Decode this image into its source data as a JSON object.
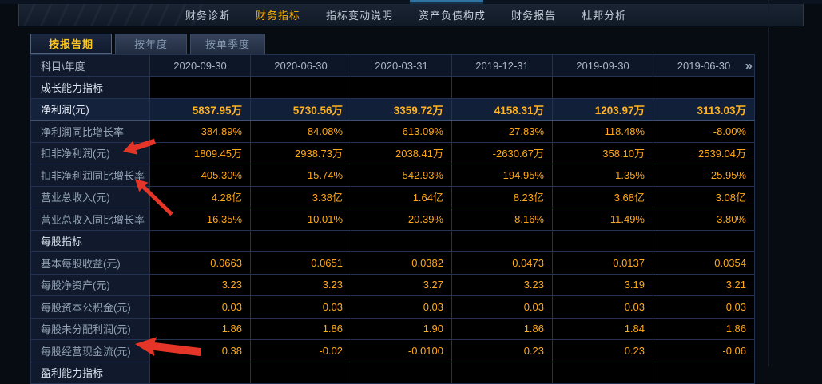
{
  "colors": {
    "accent_yellow": "#ffa81a",
    "accent_yellow_bold": "#ffb322",
    "active_tab_yellow": "#ffc91e",
    "nav_active_yellow": "#ffb400",
    "annotation_red": "#e53528",
    "table_border": "#233251",
    "highlight_row_bg": "#121f38"
  },
  "top_nav": {
    "items": [
      {
        "id": "financial-diagnosis",
        "label": "财务诊断",
        "active": false
      },
      {
        "id": "financial-indicators",
        "label": "财务指标",
        "active": true
      },
      {
        "id": "indicator-change-notes",
        "label": "指标变动说明",
        "active": false
      },
      {
        "id": "balance-sheet-structure",
        "label": "资产负债构成",
        "active": false
      },
      {
        "id": "financial-report",
        "label": "财务报告",
        "active": false
      },
      {
        "id": "dupont-analysis",
        "label": "杜邦分析",
        "active": false
      }
    ]
  },
  "tabs": [
    {
      "id": "by-report-period",
      "label": "按报告期",
      "active": true
    },
    {
      "id": "by-year",
      "label": "按年度",
      "active": false
    },
    {
      "id": "by-quarter",
      "label": "按单季度",
      "active": false
    }
  ],
  "table": {
    "corner_header": "科目\\年度",
    "columns": [
      "2020-09-30",
      "2020-06-30",
      "2020-03-31",
      "2019-12-31",
      "2019-09-30",
      "2019-06-30"
    ],
    "more_columns_icon": "»",
    "rows": [
      {
        "type": "section",
        "label": "成长能力指标",
        "values": [
          "",
          "",
          "",
          "",
          "",
          ""
        ]
      },
      {
        "type": "data",
        "label": "净利润(元)",
        "highlight": true,
        "values": [
          "5837.95万",
          "5730.56万",
          "3359.72万",
          "4158.31万",
          "1203.97万",
          "3113.03万"
        ]
      },
      {
        "type": "data",
        "label": "净利润同比增长率",
        "values": [
          "384.89%",
          "84.08%",
          "613.09%",
          "27.83%",
          "118.48%",
          "-8.00%"
        ]
      },
      {
        "type": "data",
        "label": "扣非净利润(元)",
        "values": [
          "1809.45万",
          "2938.73万",
          "2038.41万",
          "-2630.67万",
          "358.10万",
          "2539.04万"
        ]
      },
      {
        "type": "data",
        "label": "扣非净利润同比增长率",
        "values": [
          "405.30%",
          "15.74%",
          "542.93%",
          "-194.95%",
          "1.35%",
          "-25.95%"
        ]
      },
      {
        "type": "data",
        "label": "营业总收入(元)",
        "values": [
          "4.28亿",
          "3.38亿",
          "1.64亿",
          "8.23亿",
          "3.68亿",
          "3.08亿"
        ]
      },
      {
        "type": "data",
        "label": "营业总收入同比增长率",
        "values": [
          "16.35%",
          "10.01%",
          "20.39%",
          "8.16%",
          "11.49%",
          "3.80%"
        ]
      },
      {
        "type": "section",
        "label": "每股指标",
        "values": [
          "",
          "",
          "",
          "",
          "",
          ""
        ]
      },
      {
        "type": "data",
        "label": "基本每股收益(元)",
        "values": [
          "0.0663",
          "0.0651",
          "0.0382",
          "0.0473",
          "0.0137",
          "0.0354"
        ]
      },
      {
        "type": "data",
        "label": "每股净资产(元)",
        "values": [
          "3.23",
          "3.23",
          "3.27",
          "3.23",
          "3.19",
          "3.21"
        ]
      },
      {
        "type": "data",
        "label": "每股资本公积金(元)",
        "values": [
          "0.03",
          "0.03",
          "0.03",
          "0.03",
          "0.03",
          "0.03"
        ]
      },
      {
        "type": "data",
        "label": "每股未分配利润(元)",
        "values": [
          "1.86",
          "1.86",
          "1.90",
          "1.86",
          "1.84",
          "1.86"
        ]
      },
      {
        "type": "data",
        "label": "每股经营现金流(元)",
        "values": [
          "0.38",
          "-0.02",
          "-0.0100",
          "0.23",
          "0.23",
          "-0.06"
        ]
      },
      {
        "type": "section",
        "label": "盈利能力指标",
        "values": [
          "",
          "",
          "",
          "",
          "",
          ""
        ]
      }
    ]
  },
  "annotations": {
    "arrow_color": "#e53528",
    "arrow_targets": [
      "扣非净利润(元)",
      "扣非净利润同比增长率",
      "每股经营现金流(元)"
    ]
  }
}
